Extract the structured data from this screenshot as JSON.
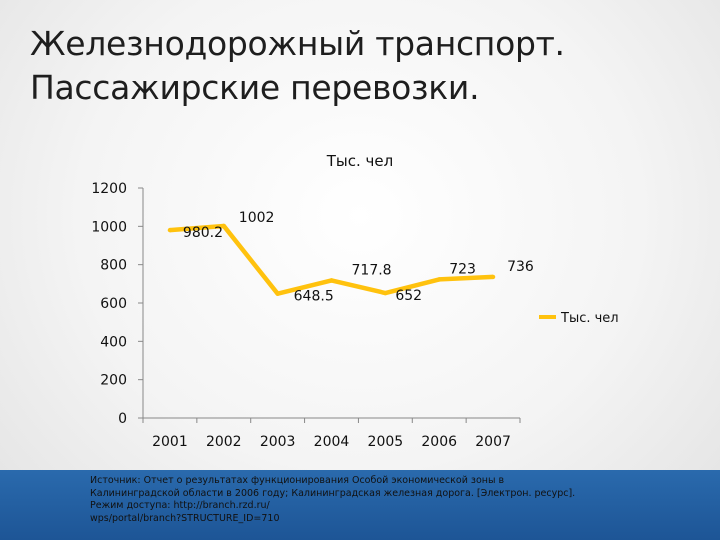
{
  "title": {
    "line1": "Железнодорожный транспорт.",
    "line2": "Пассажирские перевозки."
  },
  "chart_data": {
    "type": "line",
    "title": "Тыс. чел",
    "categories": [
      "2001",
      "2002",
      "2003",
      "2004",
      "2005",
      "2006",
      "2007"
    ],
    "series": [
      {
        "name": "Тыс. чел",
        "values": [
          980.2,
          1002,
          648.5,
          717.8,
          652,
          723,
          736
        ],
        "labels": [
          "980.2",
          "1002",
          "648.5",
          "717.8",
          "652",
          "723",
          "736"
        ],
        "color": "#ffc20e"
      }
    ],
    "yticks": [
      "0",
      "200",
      "400",
      "600",
      "800",
      "1000",
      "1200"
    ],
    "ylim": [
      0,
      1200
    ],
    "grid": false,
    "legend": "right"
  },
  "source": {
    "lines": [
      "Источник: Отчет о результатах функционирования Особой экономической зоны в",
      "Калининградской области в 2006 году; Калининградская железная дорога. [Электрон. ресурс].",
      "Режим доступа: http://branch.rzd.ru/",
      "wps/portal/branch?STRUCTURE_ID=710"
    ]
  }
}
